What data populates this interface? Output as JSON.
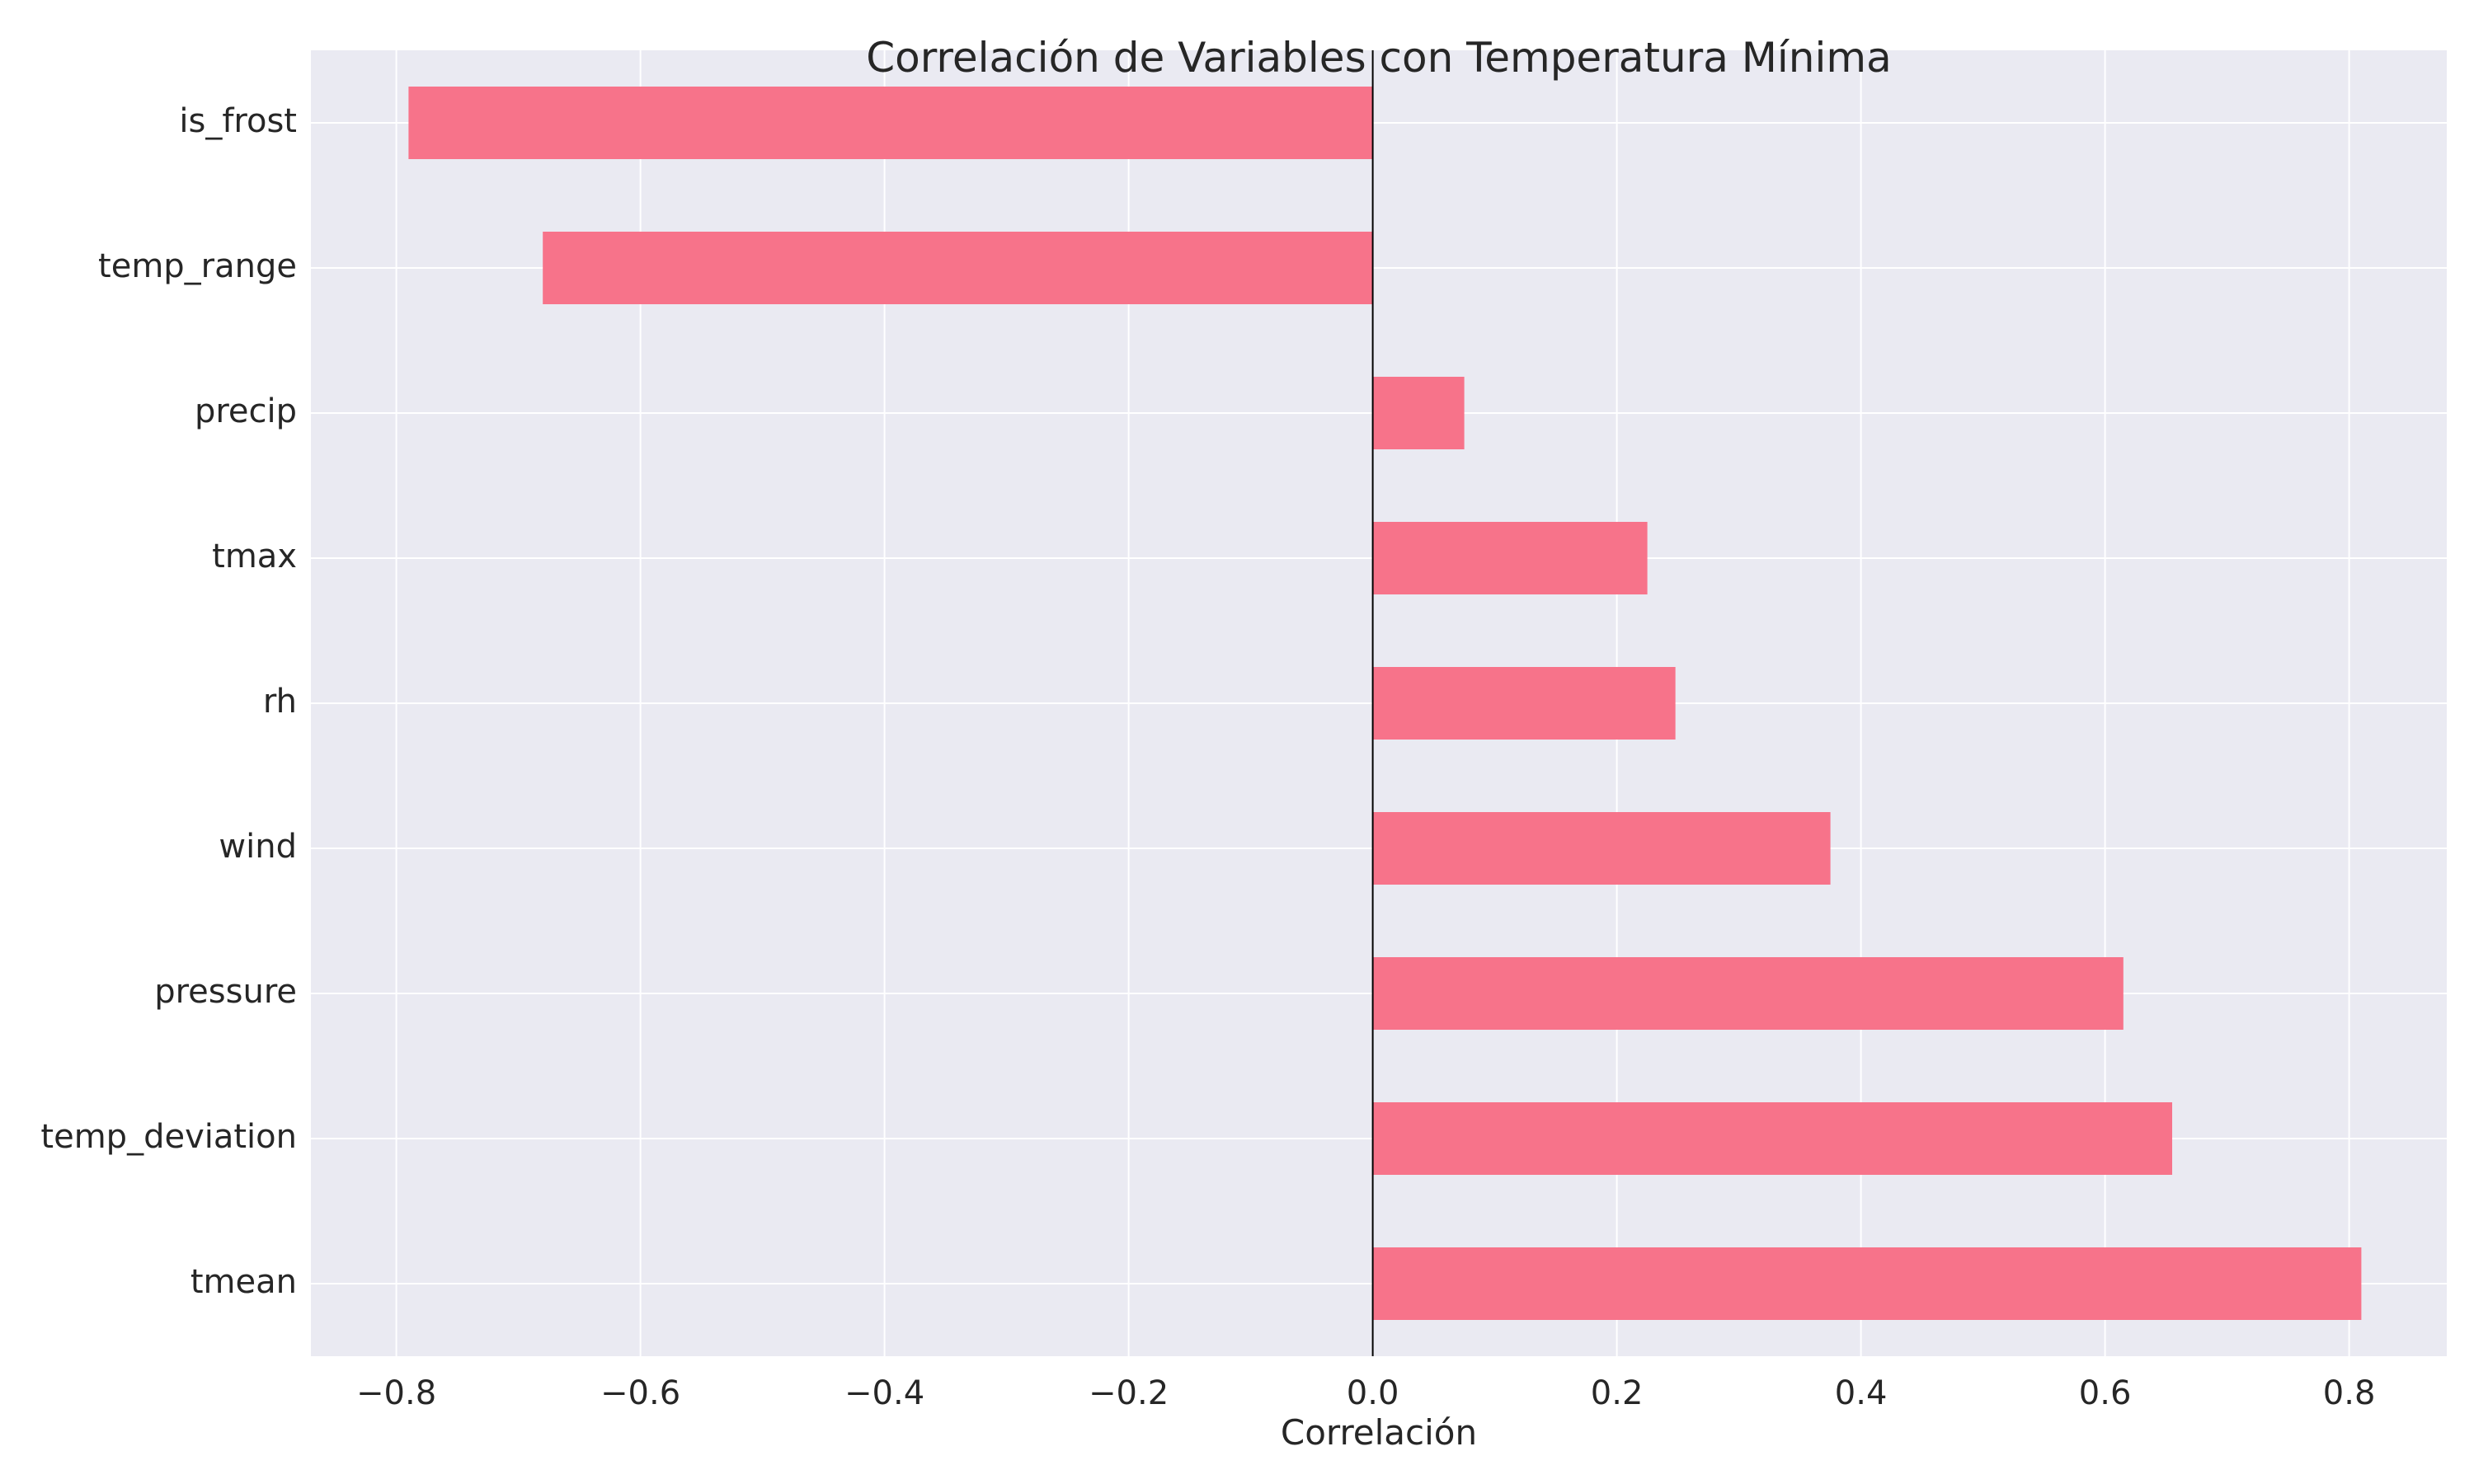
{
  "chart_data": {
    "type": "bar",
    "orientation": "horizontal",
    "title": "Correlación de Variables con Temperatura Mínima",
    "xlabel": "Correlación",
    "ylabel": "",
    "categories": [
      "is_frost",
      "temp_range",
      "precip",
      "tmax",
      "rh",
      "wind",
      "pressure",
      "temp_deviation",
      "tmean"
    ],
    "values": [
      -0.79,
      -0.68,
      0.075,
      0.225,
      0.248,
      0.375,
      0.615,
      0.655,
      0.81
    ],
    "xlim": [
      -0.87,
      0.88
    ],
    "xticks": [
      -0.8,
      -0.6,
      -0.4,
      -0.2,
      0.0,
      0.2,
      0.4,
      0.6,
      0.8
    ],
    "xtick_labels": [
      "−0.8",
      "−0.6",
      "−0.4",
      "−0.2",
      "0.0",
      "0.2",
      "0.4",
      "0.6",
      "0.8"
    ],
    "grid": true,
    "zero_line": true,
    "colors": {
      "bar": "#f7738a",
      "plot_background": "#eaeaf2",
      "grid": "#ffffff",
      "zero_line": "#000000",
      "text": "#262626"
    }
  }
}
